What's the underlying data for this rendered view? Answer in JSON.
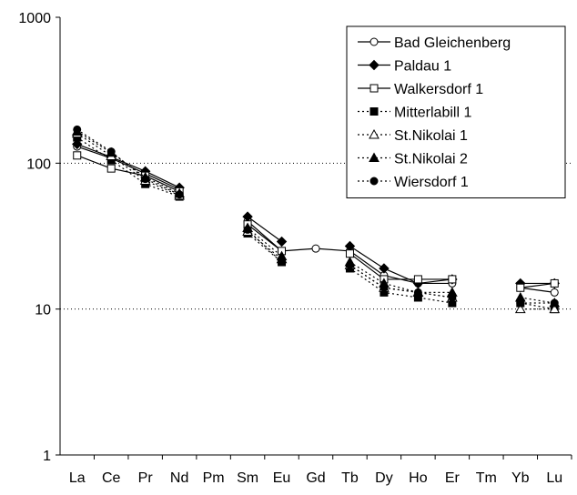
{
  "chart_data": {
    "type": "line",
    "title": "",
    "xlabel": "",
    "ylabel": "",
    "y_scale": "log",
    "ylim": [
      1,
      1000
    ],
    "y_ticks": [
      1,
      10,
      100,
      1000
    ],
    "y_tick_labels": [
      "1",
      "10",
      "100",
      "1000"
    ],
    "grid": "dotted horizontal lines at 10 and 100",
    "legend_position": "top-right",
    "categories": [
      "La",
      "Ce",
      "Pr",
      "Nd",
      "Pm",
      "Sm",
      "Eu",
      "Gd",
      "Tb",
      "Dy",
      "Ho",
      "Er",
      "Tm",
      "Yb",
      "Lu"
    ],
    "series": [
      {
        "name": "Bad Gleichenberg",
        "line": "solid",
        "marker": "circle-open",
        "values": [
          130,
          108,
          85,
          66,
          null,
          40,
          25,
          26,
          25,
          17,
          15,
          15,
          null,
          14,
          13
        ]
      },
      {
        "name": "Paldau 1",
        "line": "solid",
        "marker": "diamond-filled",
        "values": [
          135,
          110,
          88,
          68,
          null,
          43,
          29,
          null,
          27,
          19,
          15,
          16,
          null,
          15,
          15
        ]
      },
      {
        "name": "Walkersdorf 1",
        "line": "solid",
        "marker": "square-open",
        "values": [
          113,
          92,
          82,
          64,
          null,
          38,
          25,
          null,
          24,
          16,
          16,
          16,
          null,
          14,
          15
        ]
      },
      {
        "name": "Mitterlabill 1",
        "line": "dotted",
        "marker": "square-filled",
        "values": [
          150,
          105,
          72,
          59,
          null,
          33,
          21,
          null,
          19,
          13,
          12,
          11,
          null,
          11,
          10
        ]
      },
      {
        "name": "St.Nikolai 1",
        "line": "dotted",
        "marker": "triangle-open",
        "values": [
          160,
          112,
          76,
          60,
          null,
          34,
          22,
          null,
          20,
          14,
          13,
          12,
          null,
          10,
          10
        ]
      },
      {
        "name": "St.Nikolai 2",
        "line": "dotted",
        "marker": "triangle-filled",
        "values": [
          165,
          118,
          80,
          62,
          null,
          36,
          23,
          null,
          21,
          15,
          13,
          13,
          null,
          12,
          11
        ]
      },
      {
        "name": "Wiersdorf 1",
        "line": "dotted",
        "marker": "circle-filled",
        "values": [
          170,
          120,
          78,
          61,
          null,
          35,
          21,
          null,
          20,
          14,
          13,
          12,
          null,
          11,
          11
        ]
      }
    ]
  }
}
